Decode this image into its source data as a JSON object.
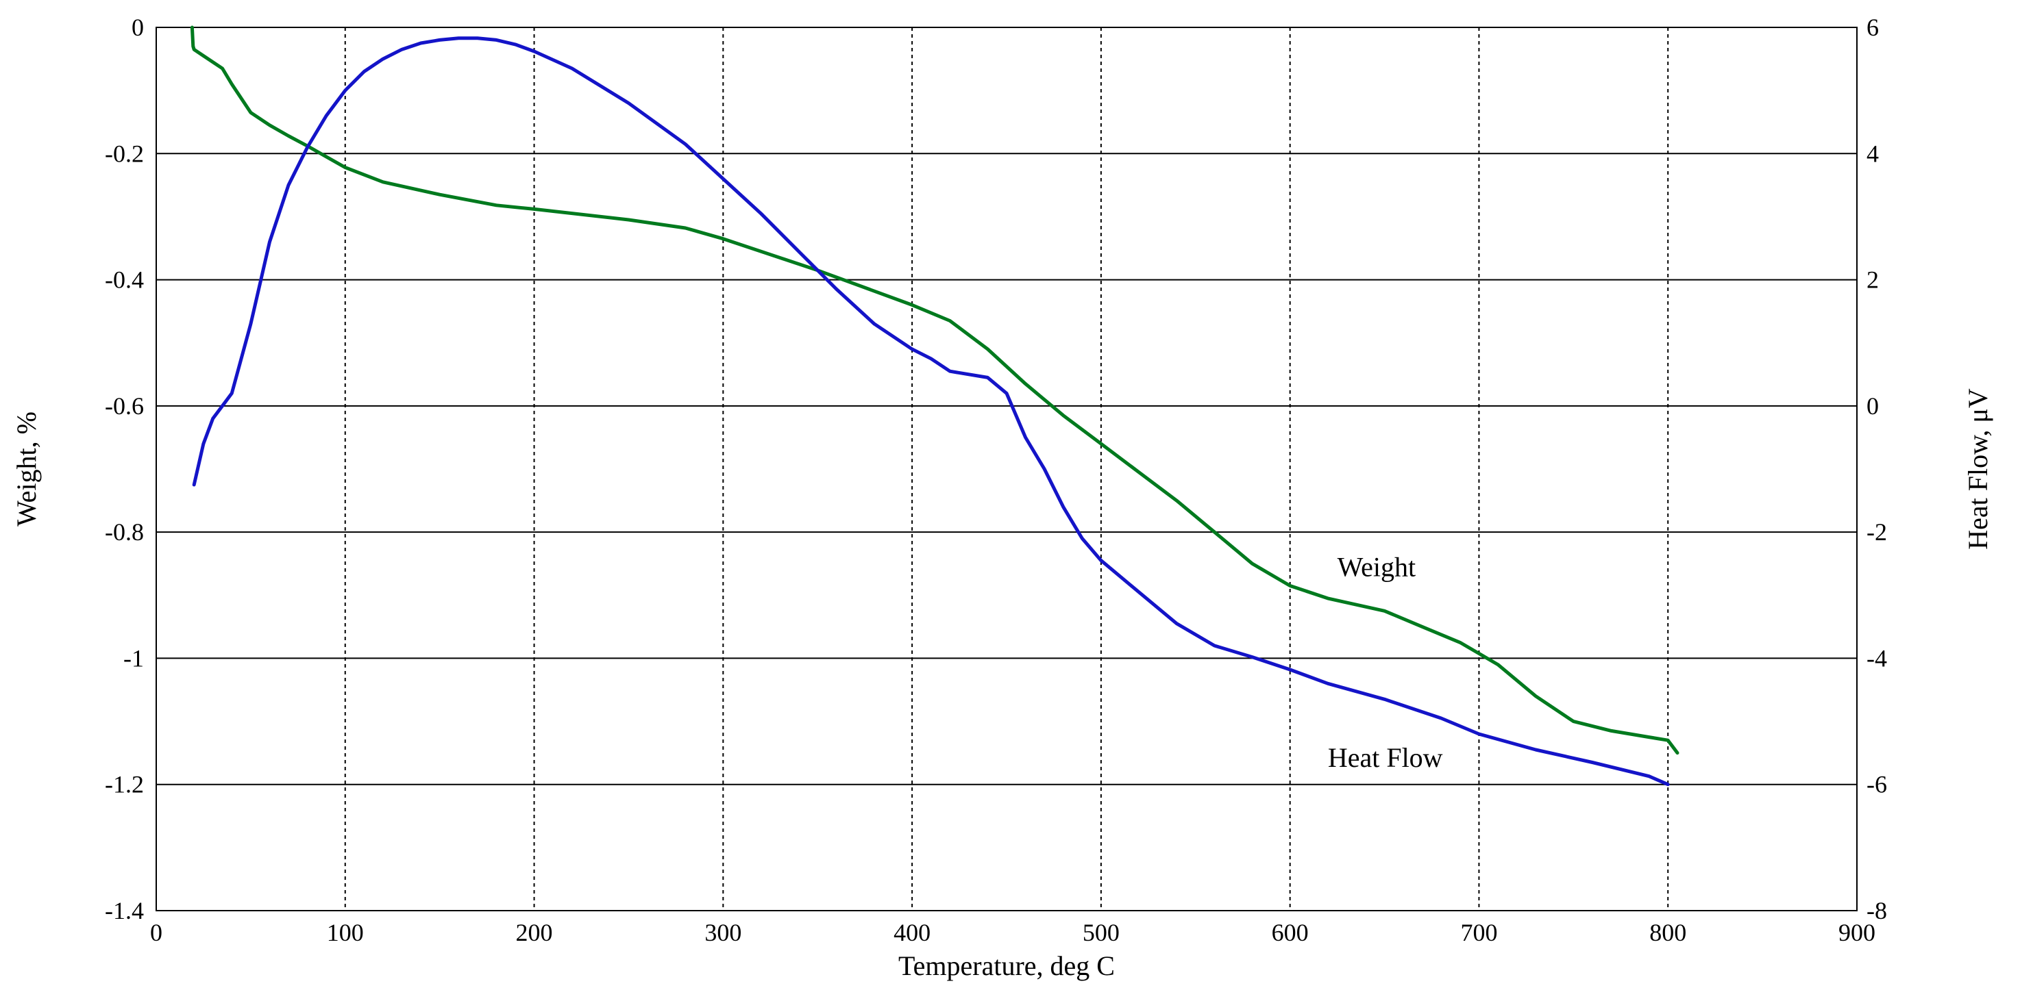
{
  "chart_data": {
    "type": "line",
    "xlabel": "Temperature, deg C",
    "ylabel_left": "Weight, %",
    "ylabel_right": "Heat Flow, μV",
    "xlim": [
      0,
      900
    ],
    "ylim_left": [
      -1.4,
      0
    ],
    "ylim_right": [
      -8,
      6
    ],
    "xticks": [
      0,
      100,
      200,
      300,
      400,
      500,
      600,
      700,
      800,
      900
    ],
    "yticks_left": [
      0,
      -0.2,
      -0.4,
      -0.6,
      -0.8,
      -1,
      -1.2,
      -1.4
    ],
    "yticks_right": [
      6,
      4,
      2,
      0,
      -2,
      -4,
      -6,
      -8
    ],
    "xtick_labels": [
      "0",
      "100",
      "200",
      "300",
      "400",
      "500",
      "600",
      "700",
      "800",
      "900"
    ],
    "ytick_labels_left": [
      "0",
      "-0.2",
      "-0.4",
      "-0.6",
      "-0.8",
      "-1",
      "-1.2",
      "-1.4"
    ],
    "ytick_labels_right": [
      "6",
      "4",
      "2",
      "0",
      "-2",
      "-4",
      "-6",
      "-8"
    ],
    "grid": {
      "horizontal": "solid",
      "vertical": "dotted"
    },
    "series": [
      {
        "name": "Weight",
        "axis": "left",
        "color": "#007a1e",
        "x": [
          19,
          19.5,
          20,
          25,
          35,
          40,
          50,
          60,
          70,
          80,
          90,
          100,
          120,
          150,
          180,
          200,
          250,
          280,
          300,
          350,
          400,
          420,
          440,
          460,
          480,
          500,
          520,
          540,
          560,
          580,
          600,
          620,
          650,
          670,
          690,
          710,
          730,
          750,
          770,
          790,
          800,
          805
        ],
        "values": [
          0,
          -0.03,
          -0.035,
          -0.045,
          -0.065,
          -0.09,
          -0.135,
          -0.155,
          -0.172,
          -0.188,
          -0.205,
          -0.222,
          -0.245,
          -0.265,
          -0.282,
          -0.288,
          -0.305,
          -0.318,
          -0.335,
          -0.385,
          -0.44,
          -0.465,
          -0.51,
          -0.565,
          -0.615,
          -0.66,
          -0.705,
          -0.75,
          -0.8,
          -0.85,
          -0.885,
          -0.905,
          -0.925,
          -0.95,
          -0.975,
          -1.01,
          -1.06,
          -1.1,
          -1.115,
          -1.125,
          -1.13,
          -1.15
        ]
      },
      {
        "name": "Heat Flow",
        "axis": "right",
        "color": "#1414c8",
        "x": [
          20,
          25,
          30,
          35,
          40,
          50,
          60,
          70,
          80,
          90,
          100,
          110,
          120,
          130,
          140,
          150,
          160,
          170,
          180,
          190,
          200,
          220,
          250,
          280,
          300,
          320,
          340,
          360,
          380,
          400,
          410,
          420,
          440,
          450,
          460,
          470,
          480,
          490,
          500,
          520,
          540,
          560,
          580,
          600,
          620,
          650,
          680,
          700,
          730,
          760,
          790,
          800
        ],
        "values": [
          -1.25,
          -0.6,
          -0.2,
          0,
          0.2,
          1.3,
          2.6,
          3.5,
          4.1,
          4.6,
          5.0,
          5.3,
          5.5,
          5.65,
          5.75,
          5.8,
          5.83,
          5.83,
          5.8,
          5.73,
          5.62,
          5.35,
          4.8,
          4.15,
          3.6,
          3.05,
          2.45,
          1.85,
          1.3,
          0.9,
          0.75,
          0.55,
          0.45,
          0.2,
          -0.5,
          -1.0,
          -1.6,
          -2.1,
          -2.45,
          -2.95,
          -3.45,
          -3.8,
          -3.98,
          -4.18,
          -4.4,
          -4.65,
          -4.95,
          -5.2,
          -5.45,
          -5.65,
          -5.87,
          -6.0
        ]
      }
    ],
    "annotations": [
      "Weight",
      "Heat Flow"
    ]
  }
}
